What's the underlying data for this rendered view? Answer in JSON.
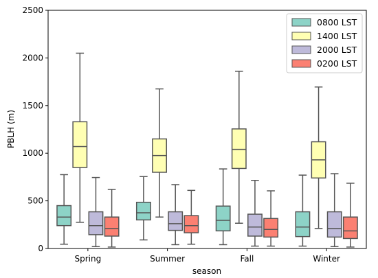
{
  "chart_data": {
    "type": "box",
    "xlabel": "season",
    "ylabel": "PBLH (m)",
    "ylim": [
      0,
      2500
    ],
    "yticks": [
      0,
      500,
      1000,
      1500,
      2000,
      2500
    ],
    "categories": [
      "Spring",
      "Summer",
      "Fall",
      "Winter"
    ],
    "legend_position": "top-right",
    "grid": false,
    "series": [
      {
        "name": "0800 LST",
        "color": "#8dd3c7",
        "boxes": [
          {
            "whisker_low": 45,
            "q1": 240,
            "median": 330,
            "q3": 450,
            "whisker_high": 775
          },
          {
            "whisker_low": 90,
            "q1": 300,
            "median": 375,
            "q3": 485,
            "whisker_high": 755
          },
          {
            "whisker_low": 40,
            "q1": 185,
            "median": 295,
            "q3": 445,
            "whisker_high": 835
          },
          {
            "whisker_low": 25,
            "q1": 125,
            "median": 225,
            "q3": 385,
            "whisker_high": 770
          }
        ]
      },
      {
        "name": "1400 LST",
        "color": "#ffffb3",
        "boxes": [
          {
            "whisker_low": 275,
            "q1": 850,
            "median": 1070,
            "q3": 1330,
            "whisker_high": 2050
          },
          {
            "whisker_low": 330,
            "q1": 800,
            "median": 975,
            "q3": 1150,
            "whisker_high": 1675
          },
          {
            "whisker_low": 265,
            "q1": 840,
            "median": 1040,
            "q3": 1255,
            "whisker_high": 1860
          },
          {
            "whisker_low": 210,
            "q1": 740,
            "median": 930,
            "q3": 1120,
            "whisker_high": 1695
          }
        ]
      },
      {
        "name": "2000 LST",
        "color": "#bebada",
        "boxes": [
          {
            "whisker_low": 20,
            "q1": 145,
            "median": 240,
            "q3": 385,
            "whisker_high": 745
          },
          {
            "whisker_low": 40,
            "q1": 190,
            "median": 260,
            "q3": 385,
            "whisker_high": 670
          },
          {
            "whisker_low": 25,
            "q1": 130,
            "median": 225,
            "q3": 360,
            "whisker_high": 715
          },
          {
            "whisker_low": 20,
            "q1": 120,
            "median": 210,
            "q3": 385,
            "whisker_high": 785
          }
        ]
      },
      {
        "name": "0200 LST",
        "color": "#fb8072",
        "boxes": [
          {
            "whisker_low": 15,
            "q1": 130,
            "median": 210,
            "q3": 330,
            "whisker_high": 620
          },
          {
            "whisker_low": 45,
            "q1": 165,
            "median": 240,
            "q3": 345,
            "whisker_high": 610
          },
          {
            "whisker_low": 25,
            "q1": 120,
            "median": 200,
            "q3": 315,
            "whisker_high": 605
          },
          {
            "whisker_low": 15,
            "q1": 105,
            "median": 185,
            "q3": 330,
            "whisker_high": 685
          }
        ]
      }
    ]
  }
}
